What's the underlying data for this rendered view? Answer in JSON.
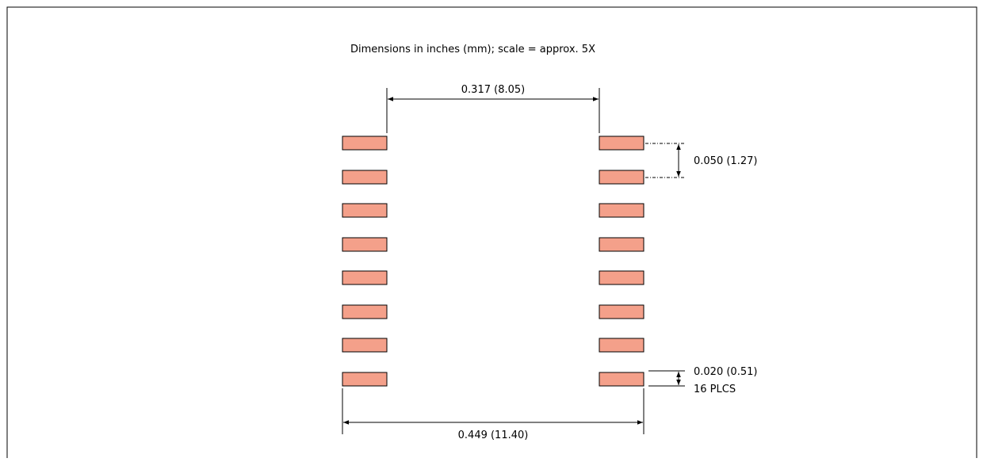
{
  "diagram": {
    "title": "Dimensions in inches (mm); scale = approx. 5X",
    "pad_count": 16,
    "pads_per_side": 8,
    "pad_color": "#f4a08a",
    "pad_border_color": "#000000",
    "frame_color": "#000000",
    "dimensions": {
      "inner_span": "0.317 (8.05)",
      "pitch": "0.050 (1.27)",
      "pad_width": "0.020 (0.51)",
      "pad_width_qualifier": "16 PLCS",
      "outer_span": "0.449 (11.40)"
    }
  }
}
